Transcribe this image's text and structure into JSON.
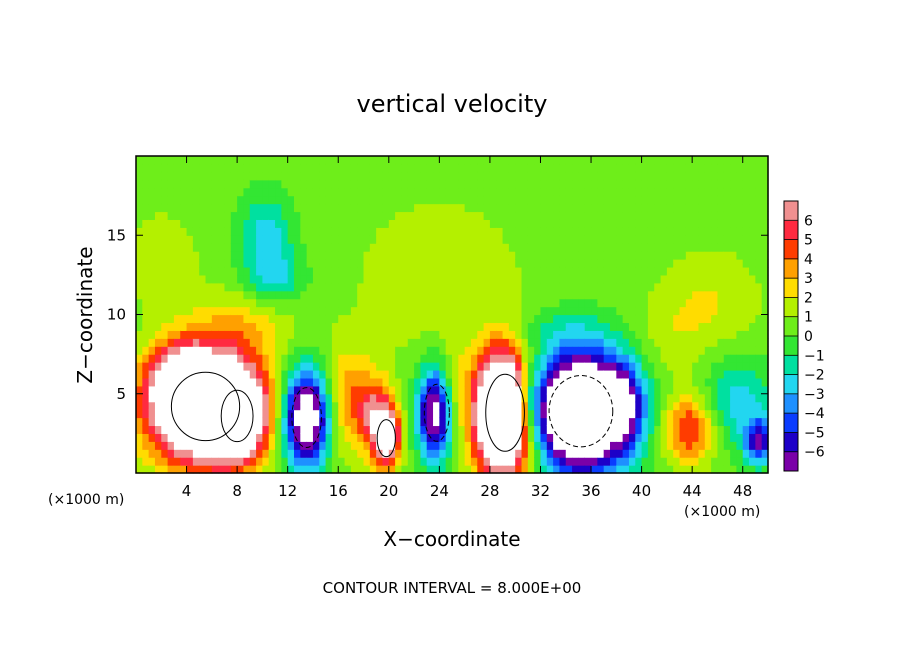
{
  "chart_data": {
    "type": "heatmap",
    "title": "vertical velocity",
    "xlabel": "X−coordinate",
    "ylabel": "Z−coordinate",
    "x_unit_label": "(×1000 m)",
    "y_unit_label": "(×1000 m)",
    "annotation": "CONTOUR INTERVAL = 8.000E+00",
    "xlim": [
      0,
      50
    ],
    "ylim": [
      0,
      20
    ],
    "x_ticks": [
      4,
      8,
      12,
      16,
      20,
      24,
      28,
      32,
      36,
      40,
      44,
      48
    ],
    "x_tick_labels": [
      "4",
      "8",
      "12",
      "16",
      "20",
      "24",
      "28",
      "32",
      "36",
      "40",
      "44",
      "48"
    ],
    "y_ticks": [
      5,
      10,
      15
    ],
    "y_tick_labels": [
      "5",
      "10",
      "15"
    ],
    "colorbar": {
      "min": -6,
      "max": 6,
      "levels": [
        -6,
        -5,
        -4,
        -3,
        -2,
        -1,
        0,
        1,
        2,
        3,
        4,
        5,
        6
      ],
      "labels": [
        "−6",
        "−5",
        "−4",
        "−3",
        "−2",
        "−1",
        "0",
        "1",
        "2",
        "3",
        "4",
        "5",
        "6"
      ],
      "colors": [
        "#7a00a8",
        "#1d00c8",
        "#0a3cff",
        "#1e90ff",
        "#22d6f0",
        "#00e0a0",
        "#33e633",
        "#6eee1a",
        "#b4f000",
        "#ffdc00",
        "#ffa000",
        "#ff3c00",
        "#ff2a40",
        "#f09090"
      ]
    },
    "features": [
      {
        "x": 5.5,
        "z": 4.2,
        "sx": 3.0,
        "sz": 2.4,
        "w": 16
      },
      {
        "x": 8.0,
        "z": 3.6,
        "sx": 1.4,
        "sz": 1.8,
        "w": 8
      },
      {
        "x": 3.5,
        "z": 6.0,
        "sx": 1.6,
        "sz": 1.4,
        "w": 6
      },
      {
        "x": 13.5,
        "z": 3.5,
        "sx": 1.3,
        "sz": 2.1,
        "w": -11
      },
      {
        "x": 16.8,
        "z": 4.5,
        "sx": 1.6,
        "sz": 2.4,
        "w": 3.5
      },
      {
        "x": 19.8,
        "z": 2.2,
        "sx": 0.8,
        "sz": 1.3,
        "w": 9
      },
      {
        "x": 19.0,
        "z": 4.0,
        "sx": 1.0,
        "sz": 1.4,
        "w": 4
      },
      {
        "x": 23.8,
        "z": 3.8,
        "sx": 1.1,
        "sz": 2.0,
        "w": -9
      },
      {
        "x": 25.0,
        "z": 4.5,
        "sx": 0.7,
        "sz": 2.0,
        "w": 3
      },
      {
        "x": 29.2,
        "z": 3.8,
        "sx": 1.7,
        "sz": 2.7,
        "w": 17
      },
      {
        "x": 31.0,
        "z": 4.5,
        "sx": 0.7,
        "sz": 2.0,
        "w": -4
      },
      {
        "x": 35.2,
        "z": 3.9,
        "sx": 2.8,
        "sz": 2.5,
        "w": -16
      },
      {
        "x": 38.5,
        "z": 4.5,
        "sx": 1.0,
        "sz": 1.5,
        "w": -4
      },
      {
        "x": 43.8,
        "z": 2.8,
        "sx": 1.5,
        "sz": 1.6,
        "w": 5
      },
      {
        "x": 47.5,
        "z": 4.5,
        "sx": 2.0,
        "sz": 2.0,
        "w": -3
      },
      {
        "x": 49.3,
        "z": 2.0,
        "sx": 0.8,
        "sz": 1.0,
        "w": -6
      },
      {
        "x": 10.3,
        "z": 15.0,
        "sx": 1.4,
        "sz": 1.8,
        "w": -3
      },
      {
        "x": 11.0,
        "z": 12.2,
        "sx": 1.6,
        "sz": 1.2,
        "w": -2.5
      },
      {
        "x": 24.0,
        "z": 12.3,
        "sx": 4.5,
        "sz": 3.5,
        "w": 1.5
      },
      {
        "x": 45.5,
        "z": 10.8,
        "sx": 2.8,
        "sz": 2.4,
        "w": 1.6
      },
      {
        "x": 8.5,
        "z": 9.5,
        "sx": 3.0,
        "sz": 1.5,
        "w": 2
      },
      {
        "x": 2.0,
        "z": 13.5,
        "sx": 2.0,
        "sz": 2.0,
        "w": 1.6
      },
      {
        "x": 32.5,
        "z": 9.0,
        "sx": 3.5,
        "sz": 1.0,
        "w": -1.2
      },
      {
        "x": 42.0,
        "z": 8.5,
        "sx": 2.0,
        "sz": 2.0,
        "w": 1.0
      }
    ]
  }
}
